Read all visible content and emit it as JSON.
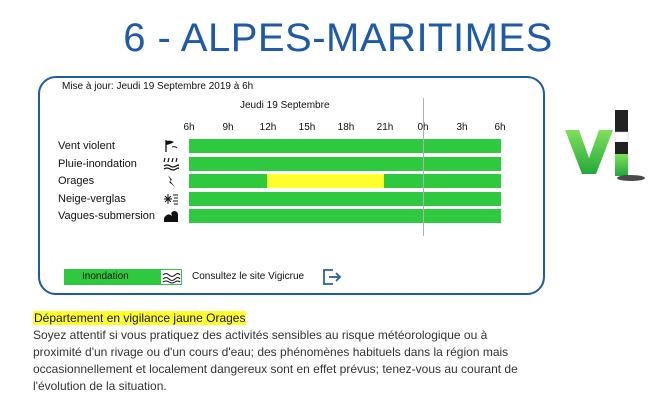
{
  "page_title": "6 - ALPES-MARITIMES",
  "update_text": "Mise à jour: Jeudi 19 Septembre 2019 à 6h",
  "day_label": "Jeudi 19 Septembre",
  "hours": [
    "6h",
    "9h",
    "12h",
    "15h",
    "18h",
    "21h",
    "0h",
    "3h",
    "6h"
  ],
  "rows": [
    {
      "label": "Vent violent",
      "icon": "wind-icon",
      "alert_level": "green"
    },
    {
      "label": "Pluie-inondation",
      "icon": "rain-flood-icon",
      "alert_level": "green"
    },
    {
      "label": "Orages",
      "icon": "lightning-icon",
      "alert_level": "yellow",
      "yellow_from": "12h",
      "yellow_to": "21h"
    },
    {
      "label": "Neige-verglas",
      "icon": "snow-ice-icon",
      "alert_level": "green"
    },
    {
      "label": "Vagues-submersion",
      "icon": "waves-icon",
      "alert_level": "green"
    }
  ],
  "flood": {
    "label": "Inondation",
    "icon": "flood-waves-icon",
    "link_text": "Consultez le site Vigicrue",
    "link_icon": "external-link-icon"
  },
  "colors": {
    "green": "#2ec93e",
    "yellow": "#ffff2e",
    "accent": "#1e5aa8"
  },
  "logo_icon": "vigilance-logo-icon",
  "vigilance": {
    "title": "Département en vigilance jaune Orages",
    "lines": [
      "Soyez attentif si vous pratiquez des activités sensibles au risque météorologique ou à",
      "proximité d'un rivage ou d'un cours d'eau; des phénomènes habituels dans la région mais",
      "occasionnellement et localement dangereux sont en effet prévus; tenez-vous au courant de",
      "l'évolution de la situation."
    ]
  }
}
